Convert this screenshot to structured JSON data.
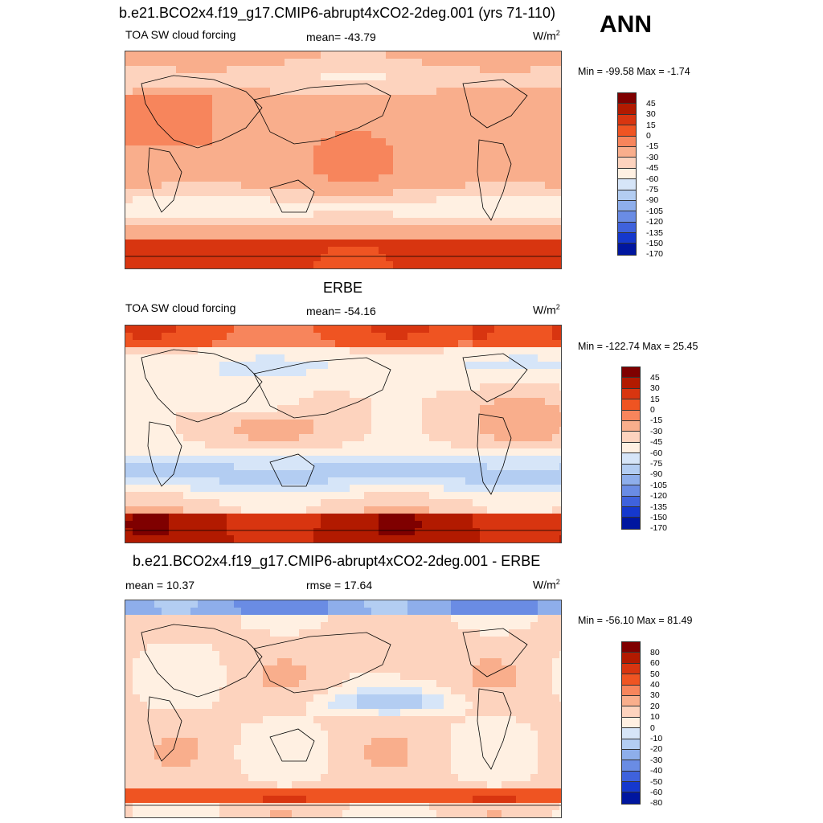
{
  "header": {
    "season": "ANN"
  },
  "colors": {
    "abs": [
      "#7f0000",
      "#b21a00",
      "#d83510",
      "#ef5422",
      "#f7855c",
      "#f9ae8c",
      "#fdd3be",
      "#fff0e2",
      "#d6e5f8",
      "#b3cdf2",
      "#8eaeeb",
      "#6a8ce4",
      "#3f62dc",
      "#1538cd",
      "#00169f"
    ],
    "diff": [
      "#7f0000",
      "#b21a00",
      "#d83510",
      "#ef5422",
      "#f7855c",
      "#f9ae8c",
      "#fdd3be",
      "#fff0e2",
      "#d6e5f8",
      "#b3cdf2",
      "#8eaeeb",
      "#6a8ce4",
      "#3f62dc",
      "#1538cd",
      "#00169f"
    ]
  },
  "panels": [
    {
      "title": "b.e21.BCO2x4.f19_g17.CMIP6-abrupt4xCO2-2deg.001 (yrs 71-110)",
      "left": "TOA SW cloud forcing",
      "center": "mean= -43.79",
      "units": "W/m",
      "units_sup": "2",
      "minmax": "Min = -99.58 Max =  -1.74",
      "levels": [
        "45",
        "30",
        "15",
        "0",
        "-15",
        "-30",
        "-45",
        "-60",
        "-75",
        "-90",
        "-105",
        "-120",
        "-135",
        "-150",
        "-170"
      ],
      "scheme": "abs"
    },
    {
      "title": "ERBE",
      "left": "TOA SW cloud forcing",
      "center": "mean= -54.16",
      "units": "W/m",
      "units_sup": "2",
      "minmax": "Min = -122.74 Max =  25.45",
      "levels": [
        "45",
        "30",
        "15",
        "0",
        "-15",
        "-30",
        "-45",
        "-60",
        "-75",
        "-90",
        "-105",
        "-120",
        "-135",
        "-150",
        "-170"
      ],
      "scheme": "abs"
    },
    {
      "title": "b.e21.BCO2x4.f19_g17.CMIP6-abrupt4xCO2-2deg.001 - ERBE",
      "left": "mean =  10.37",
      "center": "rmse =  17.64",
      "units": "W/m",
      "units_sup": "2",
      "minmax": "Min = -56.10 Max =  81.49",
      "levels": [
        "80",
        "60",
        "50",
        "40",
        "30",
        "20",
        "10",
        "0",
        "-10",
        "-20",
        "-30",
        "-40",
        "-50",
        "-60",
        "-80"
      ],
      "scheme": "diff"
    }
  ]
}
